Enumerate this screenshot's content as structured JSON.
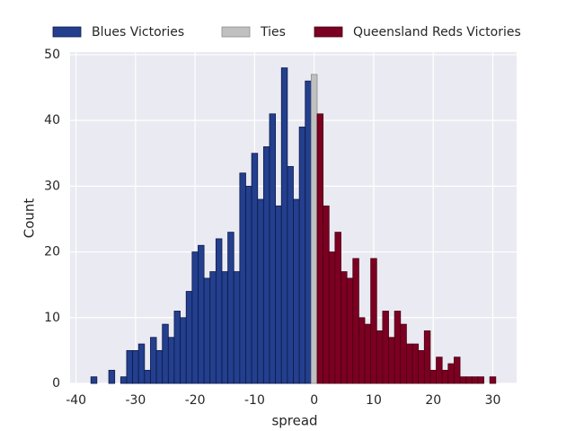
{
  "chart_data": {
    "type": "histogram",
    "xlabel": "spread",
    "ylabel": "Count",
    "bins": [
      -37.5,
      -36.5,
      -35.5,
      -34.5,
      -33.5,
      -32.5,
      -31.5,
      -30.5,
      -29.5,
      -28.5,
      -27.5,
      -26.5,
      -25.5,
      -24.5,
      -23.5,
      -22.5,
      -21.5,
      -20.5,
      -19.5,
      -18.5,
      -17.5,
      -16.5,
      -15.5,
      -14.5,
      -13.5,
      -12.5,
      -11.5,
      -10.5,
      -9.5,
      -8.5,
      -7.5,
      -6.5,
      -5.5,
      -4.5,
      -3.5,
      -2.5,
      -1.5,
      -0.5,
      0.5,
      1.5,
      2.5,
      3.5,
      4.5,
      5.5,
      6.5,
      7.5,
      8.5,
      9.5,
      10.5,
      11.5,
      12.5,
      13.5,
      14.5,
      15.5,
      16.5,
      17.5,
      18.5,
      19.5,
      20.5,
      21.5,
      22.5,
      23.5,
      24.5,
      25.5,
      26.5,
      27.5,
      28.5,
      29.5,
      30.5
    ],
    "series": [
      {
        "name": "Blues Victories",
        "color": "#233f8d",
        "edgecolor": "#0e1a4a",
        "values": [
          1,
          0,
          0,
          2,
          0,
          1,
          5,
          5,
          6,
          2,
          7,
          5,
          9,
          7,
          11,
          10,
          14,
          20,
          21,
          16,
          17,
          22,
          17,
          23,
          17,
          32,
          30,
          35,
          28,
          36,
          41,
          27,
          48,
          33,
          28,
          39,
          46,
          0,
          0,
          0,
          0,
          0,
          0,
          0,
          0,
          0,
          0,
          0,
          0,
          0,
          0,
          0,
          0,
          0,
          0,
          0,
          0,
          0,
          0,
          0,
          0,
          0,
          0,
          0,
          0,
          0,
          0,
          0
        ]
      },
      {
        "name": "Ties",
        "color": "#c0c0c0",
        "edgecolor": "#8c8c8c",
        "values": [
          0,
          0,
          0,
          0,
          0,
          0,
          0,
          0,
          0,
          0,
          0,
          0,
          0,
          0,
          0,
          0,
          0,
          0,
          0,
          0,
          0,
          0,
          0,
          0,
          0,
          0,
          0,
          0,
          0,
          0,
          0,
          0,
          0,
          0,
          0,
          0,
          0,
          47,
          0,
          0,
          0,
          0,
          0,
          0,
          0,
          0,
          0,
          0,
          0,
          0,
          0,
          0,
          0,
          0,
          0,
          0,
          0,
          0,
          0,
          0,
          0,
          0,
          0,
          0,
          0,
          0,
          0,
          0
        ]
      },
      {
        "name": "Queensland Reds Victories",
        "color": "#7b0022",
        "edgecolor": "#4a0012",
        "values": [
          0,
          0,
          0,
          0,
          0,
          0,
          0,
          0,
          0,
          0,
          0,
          0,
          0,
          0,
          0,
          0,
          0,
          0,
          0,
          0,
          0,
          0,
          0,
          0,
          0,
          0,
          0,
          0,
          0,
          0,
          0,
          0,
          0,
          0,
          0,
          0,
          0,
          0,
          41,
          27,
          20,
          23,
          17,
          16,
          19,
          10,
          9,
          19,
          8,
          11,
          7,
          11,
          9,
          6,
          6,
          5,
          8,
          2,
          4,
          2,
          3,
          4,
          1,
          1,
          1,
          1,
          0,
          1
        ]
      }
    ],
    "xlim": [
      -41,
      34
    ],
    "ylim": [
      0,
      50.4
    ],
    "xticks": [
      -40,
      -30,
      -20,
      -10,
      0,
      10,
      20,
      30
    ],
    "yticks": [
      0,
      10,
      20,
      30,
      40,
      50
    ],
    "grid": true
  }
}
